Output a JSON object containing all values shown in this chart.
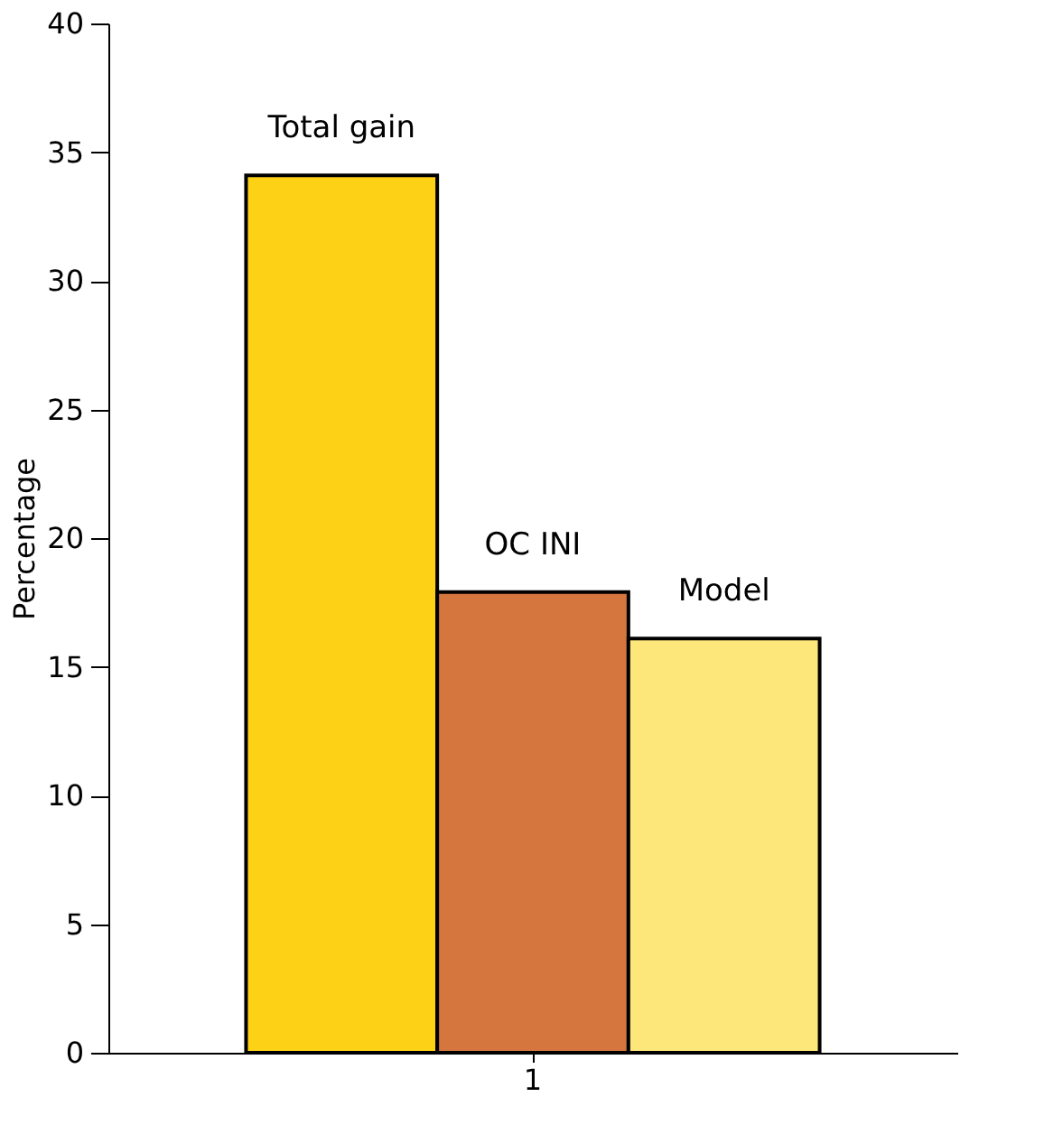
{
  "chart_data": {
    "type": "bar",
    "ylabel": "Percentage",
    "categories": [
      "1"
    ],
    "series": [
      {
        "name": "Total gain",
        "color": "#fcd116",
        "values": [
          34.1
        ]
      },
      {
        "name": "OC INI",
        "color": "#d4763e",
        "values": [
          17.9
        ]
      },
      {
        "name": "Model",
        "color": "#fde67a",
        "values": [
          16.1
        ]
      }
    ],
    "ylim": [
      0,
      40
    ],
    "yticks": [
      0,
      5,
      10,
      15,
      20,
      25,
      30,
      35,
      40
    ],
    "grid": false,
    "legend": false
  }
}
